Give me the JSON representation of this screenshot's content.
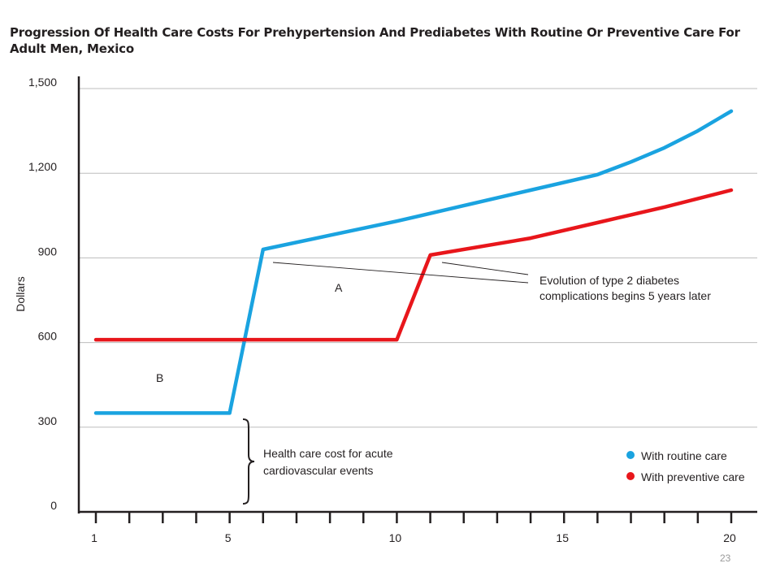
{
  "chart_data": {
    "type": "line",
    "title": "Progression Of Health Care Costs For Prehypertension And Prediabetes With Routine Or Preventive Care For Adult Men, Mexico",
    "ylabel": "Dollars",
    "xlabel": "",
    "xlim": [
      1,
      20
    ],
    "ylim": [
      0,
      1500
    ],
    "x_ticks_major": [
      1,
      5,
      10,
      15,
      20
    ],
    "y_ticks": [
      0,
      300,
      600,
      900,
      1200,
      1500
    ],
    "y_tick_labels": [
      "0",
      "300",
      "600",
      "900",
      "1,200",
      "1,500"
    ],
    "grid": "horizontal",
    "legend_position": "bottom-right",
    "series": [
      {
        "name": "With routine care",
        "color": "#1aa3e0",
        "x": [
          1,
          5,
          6,
          8,
          10,
          12,
          14,
          16,
          17,
          18,
          19,
          20
        ],
        "y": [
          350,
          350,
          930,
          980,
          1030,
          1085,
          1140,
          1195,
          1240,
          1290,
          1350,
          1420
        ]
      },
      {
        "name": "With preventive care",
        "color": "#e8161b",
        "x": [
          1,
          10,
          11,
          14,
          16,
          18,
          20
        ],
        "y": [
          610,
          610,
          910,
          970,
          1025,
          1080,
          1140
        ]
      }
    ],
    "annotations": {
      "label_a": "A",
      "label_b": "B",
      "diabetes_note_line1": "Evolution of type 2 diabetes",
      "diabetes_note_line2": "complications begins 5 years later",
      "acute_note_line1": "Health care cost for acute",
      "acute_note_line2": "cardiovascular events"
    }
  },
  "page_number": "23"
}
